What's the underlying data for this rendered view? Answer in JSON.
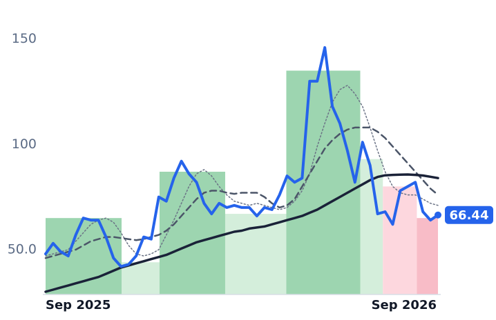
{
  "chart_data": {
    "type": "line",
    "x": [
      0,
      1,
      2,
      3,
      4,
      5,
      6,
      7,
      8,
      9,
      10,
      11,
      12,
      13,
      14,
      15,
      16,
      17,
      18,
      19,
      20,
      21,
      22,
      23,
      24,
      25,
      26,
      27,
      28,
      29,
      30,
      31,
      32,
      33,
      34,
      35,
      36,
      37,
      38,
      39,
      40,
      41,
      42,
      43,
      44,
      45,
      46,
      47,
      48,
      49,
      50,
      51,
      52
    ],
    "xlim": [
      0,
      52
    ],
    "xticks": [
      {
        "value": 0,
        "label": "Sep 2025"
      },
      {
        "value": 52,
        "label": "Sep 2026"
      }
    ],
    "ylim": [
      28.7,
      162
    ],
    "yticks": [
      {
        "value": 50,
        "label": "50.0"
      },
      100,
      150
    ],
    "bands": [
      {
        "start": 0,
        "end": 10.07,
        "top": 65,
        "color": "#9dd5b0"
      },
      {
        "start": 10.07,
        "end": 15.1,
        "top": 44,
        "color": "#d4eedb"
      },
      {
        "start": 15.1,
        "end": 23.8,
        "top": 87,
        "color": "#9dd5b0"
      },
      {
        "start": 23.8,
        "end": 31.9,
        "top": 67,
        "color": "#d4eedb"
      },
      {
        "start": 31.9,
        "end": 41.7,
        "top": 135,
        "color": "#9dd5b0"
      },
      {
        "start": 41.7,
        "end": 44.7,
        "top": 93,
        "color": "#d4eedb"
      },
      {
        "start": 44.7,
        "end": 49.2,
        "top": 80,
        "color": "#fdd7de"
      },
      {
        "start": 49.2,
        "end": 52,
        "top": 65,
        "color": "#f8bcc7"
      }
    ],
    "series": [
      {
        "color": "#2563eb",
        "width": 4,
        "dash": "solid",
        "last_label": true,
        "values": [
          48,
          53,
          49,
          47,
          57,
          65,
          64,
          64,
          56,
          46,
          42,
          43,
          47,
          56,
          55,
          75,
          73,
          84,
          92,
          86,
          82,
          72,
          67,
          72,
          70,
          71,
          70,
          70,
          66,
          70,
          69,
          76,
          85,
          82,
          84,
          130,
          130,
          146,
          118,
          110,
          97,
          82,
          101,
          90,
          67,
          68,
          62,
          78,
          80,
          82,
          68,
          64,
          66.44
        ]
      },
      {
        "color": "#1a2238",
        "width": 3.5,
        "dash": "solid",
        "values": [
          30,
          31,
          32,
          33,
          34,
          35,
          36,
          37,
          38.5,
          40,
          41.5,
          42.5,
          43.5,
          44.5,
          45.5,
          46.5,
          47.5,
          49,
          50.5,
          52,
          53.5,
          54.5,
          55.5,
          56.5,
          57.5,
          58.5,
          59,
          60,
          60.5,
          61,
          62,
          63,
          64,
          65,
          66,
          67.5,
          69,
          71,
          73,
          75,
          77,
          79,
          81,
          83,
          84.5,
          85.3,
          85.5,
          85.6,
          85.7,
          85.5,
          85.2,
          84.6,
          84
        ]
      },
      {
        "color": "#4b5568",
        "width": 2.5,
        "dash": "dashed",
        "values": [
          46,
          47,
          48,
          49,
          50,
          52,
          54,
          55,
          56,
          56,
          55.5,
          55,
          54.5,
          55,
          56,
          57,
          59,
          62,
          66,
          70,
          74,
          77,
          78,
          78,
          77,
          76.5,
          77,
          77,
          77,
          75,
          72,
          70,
          71,
          74,
          80,
          86,
          92,
          98,
          102,
          105,
          107,
          108,
          108,
          108,
          106,
          103,
          99,
          95,
          91,
          87,
          83,
          79,
          76
        ]
      },
      {
        "color": "#6b7386",
        "width": 1.5,
        "dash": "dotted",
        "values": [
          47,
          48,
          49,
          50,
          54,
          58,
          62,
          64,
          65,
          63,
          58,
          52,
          48,
          47,
          48,
          50,
          57,
          64,
          72,
          80,
          86,
          88,
          85,
          80,
          76,
          73,
          72,
          71,
          72,
          71,
          70,
          69,
          70,
          73,
          78,
          86,
          99,
          110,
          120,
          126,
          128,
          124,
          118,
          108,
          97,
          87,
          80,
          77,
          76,
          76,
          74,
          72,
          71
        ]
      }
    ]
  }
}
